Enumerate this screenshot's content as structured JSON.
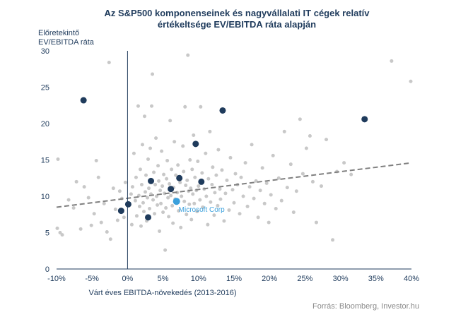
{
  "chart_data": {
    "type": "scatter",
    "title_line1": "Az S&P500 komponenseinek  és nagyvállalati IT cégek relatív",
    "title_line2": "értékeltsége  EV/EBITDA  ráta alapján",
    "ylabel_line1": "Előretekintő",
    "ylabel_line2": "EV/EBITDA ráta",
    "xlabel": "Várt éves EBITDA-növekedés (2013-2016)",
    "source": "Forrás: Bloomberg, Investor.hu",
    "xlim": [
      -10,
      40
    ],
    "ylim": [
      0,
      30
    ],
    "x_ticks": [
      -10,
      -5,
      0,
      5,
      10,
      15,
      20,
      25,
      30,
      35,
      40
    ],
    "x_tick_labels": [
      "-10%",
      "-5%",
      "0%",
      "5%",
      "10%",
      "15%",
      "20%",
      "25%",
      "30%",
      "35%",
      "40%"
    ],
    "y_ticks": [
      0,
      5,
      10,
      15,
      20,
      25,
      30
    ],
    "y_tick_labels": [
      "0",
      "5",
      "10",
      "15",
      "20",
      "25",
      "30"
    ],
    "grid": false,
    "trendline": {
      "x": [
        -10,
        40
      ],
      "y": [
        8.5,
        14.6
      ]
    },
    "colors": {
      "background": "#c8c8c8",
      "highlight": "#1f3b5c",
      "microsoft": "#3ba0dc",
      "trend": "#808080",
      "axis": "#1f3b5c"
    },
    "highlight_series": {
      "points": [
        {
          "x": -6.2,
          "y": 23.2
        },
        {
          "x": -0.9,
          "y": 8.0
        },
        {
          "x": 0.1,
          "y": 8.9
        },
        {
          "x": 2.9,
          "y": 7.1
        },
        {
          "x": 3.3,
          "y": 12.1
        },
        {
          "x": 6.1,
          "y": 11.0
        },
        {
          "x": 7.3,
          "y": 12.5
        },
        {
          "x": 9.6,
          "y": 17.2
        },
        {
          "x": 10.4,
          "y": 12.0
        },
        {
          "x": 13.4,
          "y": 21.8
        },
        {
          "x": 33.4,
          "y": 20.6
        }
      ]
    },
    "microsoft_point": {
      "label": "Microsoft Corp",
      "x": 6.9,
      "y": 9.3
    },
    "background_series": {
      "points": [
        {
          "x": -9.8,
          "y": 15.1
        },
        {
          "x": -9.9,
          "y": 5.6
        },
        {
          "x": -9.5,
          "y": 5.0
        },
        {
          "x": -9.2,
          "y": 4.7
        },
        {
          "x": -8.3,
          "y": 9.5
        },
        {
          "x": -7.6,
          "y": 8.4
        },
        {
          "x": -7.2,
          "y": 12.0
        },
        {
          "x": -6.6,
          "y": 5.5
        },
        {
          "x": -6.1,
          "y": 11.3
        },
        {
          "x": -5.5,
          "y": 9.8
        },
        {
          "x": -5.1,
          "y": 6.0
        },
        {
          "x": -4.7,
          "y": 7.6
        },
        {
          "x": -4.4,
          "y": 14.9
        },
        {
          "x": -4.1,
          "y": 12.6
        },
        {
          "x": -3.7,
          "y": 6.4
        },
        {
          "x": -3.3,
          "y": 9.0
        },
        {
          "x": -2.9,
          "y": 5.1
        },
        {
          "x": -2.6,
          "y": 28.4
        },
        {
          "x": -2.4,
          "y": 4.1
        },
        {
          "x": -2.0,
          "y": 11.1
        },
        {
          "x": -1.7,
          "y": 8.2
        },
        {
          "x": -1.4,
          "y": 6.7
        },
        {
          "x": -1.1,
          "y": 10.7
        },
        {
          "x": -0.8,
          "y": 9.7
        },
        {
          "x": -0.5,
          "y": 7.1
        },
        {
          "x": -0.3,
          "y": 11.9
        },
        {
          "x": 0.5,
          "y": 10.3
        },
        {
          "x": 0.6,
          "y": 6.1
        },
        {
          "x": 0.7,
          "y": 11.3
        },
        {
          "x": 0.9,
          "y": 15.9
        },
        {
          "x": 1.1,
          "y": 9.4
        },
        {
          "x": 1.2,
          "y": 12.6
        },
        {
          "x": 1.3,
          "y": 7.3
        },
        {
          "x": 1.5,
          "y": 22.4
        },
        {
          "x": 1.6,
          "y": 10.1
        },
        {
          "x": 1.7,
          "y": 8.6
        },
        {
          "x": 1.8,
          "y": 13.7
        },
        {
          "x": 1.9,
          "y": 5.9
        },
        {
          "x": 2.0,
          "y": 11.6
        },
        {
          "x": 2.1,
          "y": 17.1
        },
        {
          "x": 2.2,
          "y": 9.1
        },
        {
          "x": 2.3,
          "y": 7.9
        },
        {
          "x": 2.4,
          "y": 21.0
        },
        {
          "x": 2.5,
          "y": 10.6
        },
        {
          "x": 2.6,
          "y": 12.9
        },
        {
          "x": 2.7,
          "y": 6.6
        },
        {
          "x": 2.8,
          "y": 9.8
        },
        {
          "x": 2.9,
          "y": 15.1
        },
        {
          "x": 3.0,
          "y": 11.1
        },
        {
          "x": 3.1,
          "y": 8.3
        },
        {
          "x": 3.2,
          "y": 16.6
        },
        {
          "x": 3.3,
          "y": 10.3
        },
        {
          "x": 3.4,
          "y": 22.4
        },
        {
          "x": 3.5,
          "y": 26.8
        },
        {
          "x": 3.6,
          "y": 9.5
        },
        {
          "x": 3.7,
          "y": 13.3
        },
        {
          "x": 3.8,
          "y": 7.6
        },
        {
          "x": 3.9,
          "y": 11.6
        },
        {
          "x": 4.0,
          "y": 18.0
        },
        {
          "x": 4.1,
          "y": 10.0
        },
        {
          "x": 4.2,
          "y": 8.8
        },
        {
          "x": 4.3,
          "y": 14.2
        },
        {
          "x": 4.4,
          "y": 12.1
        },
        {
          "x": 4.5,
          "y": 5.2
        },
        {
          "x": 4.6,
          "y": 10.8
        },
        {
          "x": 4.7,
          "y": 9.0
        },
        {
          "x": 4.8,
          "y": 16.2
        },
        {
          "x": 4.9,
          "y": 11.4
        },
        {
          "x": 5.0,
          "y": 7.8
        },
        {
          "x": 5.1,
          "y": 13.0
        },
        {
          "x": 5.2,
          "y": 10.4
        },
        {
          "x": 5.3,
          "y": 2.6
        },
        {
          "x": 5.4,
          "y": 8.4
        },
        {
          "x": 5.5,
          "y": 12.4
        },
        {
          "x": 5.6,
          "y": 14.9
        },
        {
          "x": 5.7,
          "y": 9.8
        },
        {
          "x": 5.8,
          "y": 7.2
        },
        {
          "x": 5.9,
          "y": 11.7
        },
        {
          "x": 6.0,
          "y": 20.4
        },
        {
          "x": 6.1,
          "y": 10.1
        },
        {
          "x": 6.2,
          "y": 13.7
        },
        {
          "x": 6.3,
          "y": 8.7
        },
        {
          "x": 6.4,
          "y": 6.3
        },
        {
          "x": 6.5,
          "y": 11.2
        },
        {
          "x": 6.6,
          "y": 17.5
        },
        {
          "x": 6.7,
          "y": 9.6
        },
        {
          "x": 6.8,
          "y": 12.9
        },
        {
          "x": 7.0,
          "y": 10.5
        },
        {
          "x": 7.1,
          "y": 14.3
        },
        {
          "x": 7.2,
          "y": 8.0
        },
        {
          "x": 7.4,
          "y": 11.9
        },
        {
          "x": 7.5,
          "y": 5.7
        },
        {
          "x": 7.6,
          "y": 10.0
        },
        {
          "x": 7.8,
          "y": 16.9
        },
        {
          "x": 7.9,
          "y": 13.4
        },
        {
          "x": 8.0,
          "y": 9.3
        },
        {
          "x": 8.1,
          "y": 22.3
        },
        {
          "x": 8.2,
          "y": 11.5
        },
        {
          "x": 8.3,
          "y": 7.5
        },
        {
          "x": 8.4,
          "y": 12.2
        },
        {
          "x": 8.5,
          "y": 29.4
        },
        {
          "x": 8.6,
          "y": 10.7
        },
        {
          "x": 8.7,
          "y": 8.9
        },
        {
          "x": 8.8,
          "y": 15.0
        },
        {
          "x": 8.9,
          "y": 11.1
        },
        {
          "x": 9.0,
          "y": 6.8
        },
        {
          "x": 9.1,
          "y": 13.7
        },
        {
          "x": 9.2,
          "y": 10.3
        },
        {
          "x": 9.3,
          "y": 18.4
        },
        {
          "x": 9.4,
          "y": 9.0
        },
        {
          "x": 9.5,
          "y": 12.6
        },
        {
          "x": 9.7,
          "y": 10.8
        },
        {
          "x": 9.8,
          "y": 7.9
        },
        {
          "x": 9.9,
          "y": 14.8
        },
        {
          "x": 10.0,
          "y": 11.4
        },
        {
          "x": 10.2,
          "y": 9.5
        },
        {
          "x": 10.3,
          "y": 22.3
        },
        {
          "x": 10.5,
          "y": 13.2
        },
        {
          "x": 10.6,
          "y": 8.5
        },
        {
          "x": 10.8,
          "y": 11.0
        },
        {
          "x": 11.0,
          "y": 15.9
        },
        {
          "x": 11.1,
          "y": 10.0
        },
        {
          "x": 11.3,
          "y": 6.1
        },
        {
          "x": 11.4,
          "y": 12.4
        },
        {
          "x": 11.6,
          "y": 18.9
        },
        {
          "x": 11.7,
          "y": 9.2
        },
        {
          "x": 11.9,
          "y": 11.6
        },
        {
          "x": 12.0,
          "y": 14.0
        },
        {
          "x": 12.2,
          "y": 7.4
        },
        {
          "x": 12.3,
          "y": 10.5
        },
        {
          "x": 12.5,
          "y": 12.9
        },
        {
          "x": 12.7,
          "y": 8.7
        },
        {
          "x": 12.8,
          "y": 16.4
        },
        {
          "x": 13.0,
          "y": 11.0
        },
        {
          "x": 13.1,
          "y": 9.6
        },
        {
          "x": 13.3,
          "y": 13.6
        },
        {
          "x": 13.6,
          "y": 6.6
        },
        {
          "x": 13.8,
          "y": 10.4
        },
        {
          "x": 14.0,
          "y": 12.2
        },
        {
          "x": 14.3,
          "y": 8.1
        },
        {
          "x": 14.5,
          "y": 15.3
        },
        {
          "x": 14.8,
          "y": 10.9
        },
        {
          "x": 15.0,
          "y": 9.1
        },
        {
          "x": 15.2,
          "y": 13.1
        },
        {
          "x": 15.5,
          "y": 11.6
        },
        {
          "x": 15.8,
          "y": 7.6
        },
        {
          "x": 16.0,
          "y": 12.6
        },
        {
          "x": 16.3,
          "y": 10.0
        },
        {
          "x": 16.6,
          "y": 14.6
        },
        {
          "x": 16.9,
          "y": 8.6
        },
        {
          "x": 17.2,
          "y": 11.3
        },
        {
          "x": 17.5,
          "y": 17.1
        },
        {
          "x": 17.8,
          "y": 9.7
        },
        {
          "x": 18.1,
          "y": 12.1
        },
        {
          "x": 18.4,
          "y": 7.1
        },
        {
          "x": 18.7,
          "y": 10.8
        },
        {
          "x": 19.0,
          "y": 13.9
        },
        {
          "x": 19.3,
          "y": 9.0
        },
        {
          "x": 19.6,
          "y": 11.8
        },
        {
          "x": 19.9,
          "y": 6.4
        },
        {
          "x": 20.2,
          "y": 10.2
        },
        {
          "x": 20.5,
          "y": 15.6
        },
        {
          "x": 20.9,
          "y": 8.3
        },
        {
          "x": 21.3,
          "y": 12.5
        },
        {
          "x": 21.7,
          "y": 9.4
        },
        {
          "x": 22.1,
          "y": 18.9
        },
        {
          "x": 22.5,
          "y": 11.2
        },
        {
          "x": 23.0,
          "y": 14.4
        },
        {
          "x": 23.4,
          "y": 7.8
        },
        {
          "x": 23.8,
          "y": 10.7
        },
        {
          "x": 24.3,
          "y": 20.6
        },
        {
          "x": 24.7,
          "y": 13.1
        },
        {
          "x": 25.2,
          "y": 16.6
        },
        {
          "x": 25.7,
          "y": 18.3
        },
        {
          "x": 26.1,
          "y": 12.0
        },
        {
          "x": 26.6,
          "y": 6.4
        },
        {
          "x": 27.3,
          "y": 11.4
        },
        {
          "x": 28.0,
          "y": 17.8
        },
        {
          "x": 28.9,
          "y": 4.0
        },
        {
          "x": 29.5,
          "y": 13.4
        },
        {
          "x": 30.5,
          "y": 14.6
        },
        {
          "x": 31.5,
          "y": 13.0
        },
        {
          "x": 37.2,
          "y": 28.6
        },
        {
          "x": 39.9,
          "y": 25.8
        }
      ]
    }
  }
}
